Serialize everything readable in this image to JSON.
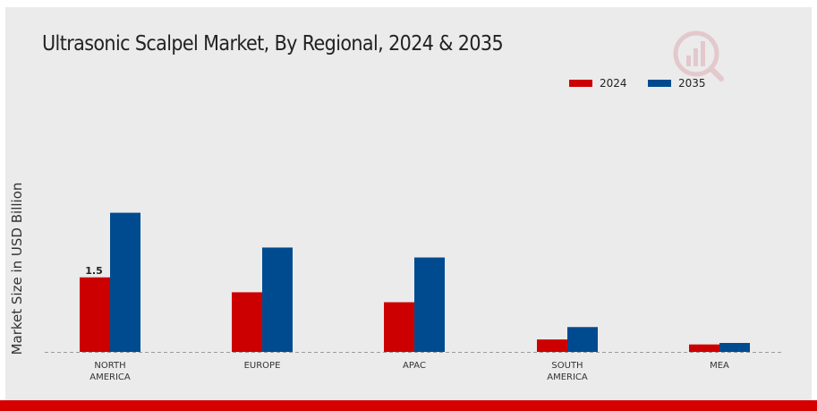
{
  "chart_data": {
    "type": "bar",
    "title": "Ultrasonic Scalpel Market, By Regional, 2024 & 2035",
    "xlabel": "",
    "ylabel": "Market Size in USD Billion",
    "categories": [
      "NORTH\nAMERICA",
      "EUROPE",
      "APAC",
      "SOUTH\nAMERICA",
      "MEA"
    ],
    "series": [
      {
        "name": "2024",
        "color": "#cc0000",
        "values": [
          1.5,
          1.2,
          1.0,
          0.25,
          0.15
        ]
      },
      {
        "name": "2035",
        "color": "#004b8f",
        "values": [
          2.8,
          2.1,
          1.9,
          0.5,
          0.18
        ]
      }
    ],
    "data_labels": [
      {
        "series": 0,
        "index": 0,
        "text": "1.5"
      }
    ],
    "ylim": [
      0,
      4.9
    ],
    "grid": false,
    "legend": "top-right"
  }
}
